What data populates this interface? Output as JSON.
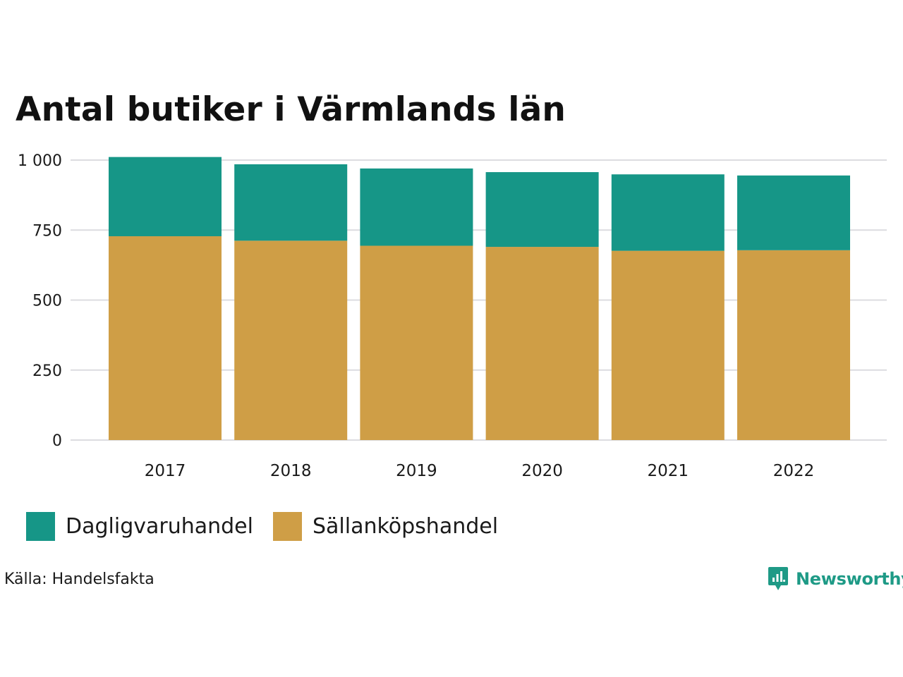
{
  "chart_data": {
    "type": "bar",
    "stacked": true,
    "title": "Antal butiker i Värmlands län",
    "categories": [
      "2017",
      "2018",
      "2019",
      "2020",
      "2021",
      "2022"
    ],
    "series": [
      {
        "name": "Sällanköpshandel",
        "color": "#cf9e46",
        "values": [
          728,
          712,
          694,
          690,
          676,
          678
        ]
      },
      {
        "name": "Dagligvaruhandel",
        "color": "#169687",
        "values": [
          283,
          273,
          276,
          267,
          273,
          267
        ]
      }
    ],
    "ylim": [
      0,
      1000
    ],
    "yticks": [
      0,
      250,
      500,
      750,
      1000
    ],
    "ytick_labels": [
      "0",
      "250",
      "500",
      "750",
      "1 000"
    ],
    "xlabel": "",
    "ylabel": "",
    "grid": true,
    "legend": [
      {
        "name": "Dagligvaruhandel",
        "color": "#169687"
      },
      {
        "name": "Sällanköpshandel",
        "color": "#cf9e46"
      }
    ],
    "legend_position": "bottom-left"
  },
  "source": "Källa: Handelsfakta",
  "brand": {
    "name": "Newsworthy",
    "color": "#1e9a86"
  }
}
